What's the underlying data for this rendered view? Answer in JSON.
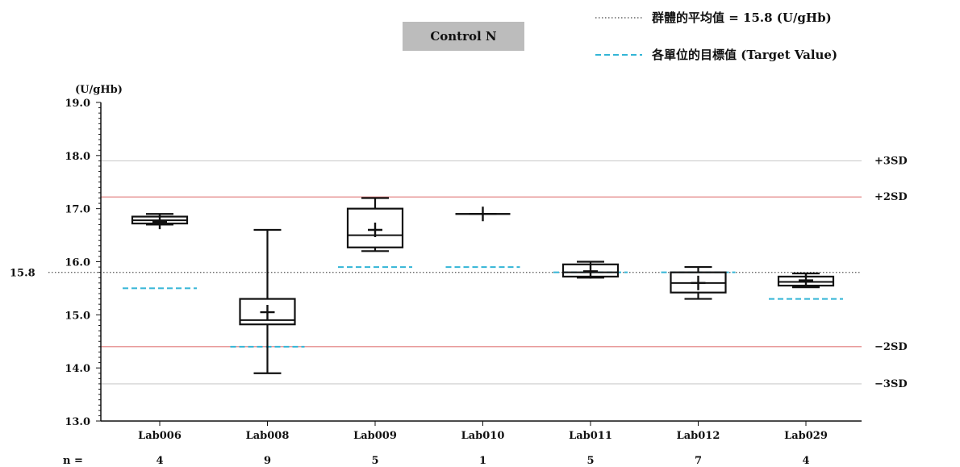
{
  "chart_data": {
    "type": "box",
    "title": "Control N",
    "y_unit": "(U/gHb)",
    "ylim": [
      13.0,
      19.0
    ],
    "yticks": [
      "13.0",
      "14.0",
      "15.0",
      "16.0",
      "17.0",
      "18.0",
      "19.0"
    ],
    "grid": false,
    "legend_position": "top-right",
    "legend": [
      {
        "label": "群體的平均值 = 15.8 (U/gHb)",
        "style": "dotted",
        "color": "#666666"
      },
      {
        "label": "各單位的目標值  (Target Value)",
        "style": "dashed",
        "color": "#33b5d6"
      }
    ],
    "group_mean": {
      "value": 15.8,
      "label": "15.8"
    },
    "sd_lines": [
      {
        "label": "+3SD",
        "value": 17.9,
        "color": "#cccccc"
      },
      {
        "label": "+2SD",
        "value": 17.22,
        "color": "#e07a7a"
      },
      {
        "label": "−2SD",
        "value": 14.4,
        "color": "#e07a7a"
      },
      {
        "label": "−3SD",
        "value": 13.7,
        "color": "#cccccc"
      }
    ],
    "n_label": "n =",
    "categories": [
      "Lab006",
      "Lab008",
      "Lab009",
      "Lab010",
      "Lab011",
      "Lab012",
      "Lab029"
    ],
    "n": [
      "4",
      "9",
      "5",
      "1",
      "5",
      "7",
      "4"
    ],
    "boxes": [
      {
        "min": 16.7,
        "q1": 16.72,
        "median": 16.78,
        "q3": 16.85,
        "max": 16.9,
        "mean": 16.75,
        "target": 15.5
      },
      {
        "min": 13.9,
        "q1": 14.82,
        "median": 14.9,
        "q3": 15.3,
        "max": 16.6,
        "mean": 15.05,
        "target": 14.4
      },
      {
        "min": 16.2,
        "q1": 16.27,
        "median": 16.5,
        "q3": 17.0,
        "max": 17.2,
        "mean": 16.6,
        "target": 15.9
      },
      {
        "min": 16.9,
        "q1": 16.9,
        "median": 16.9,
        "q3": 16.9,
        "max": 16.9,
        "mean": 16.9,
        "target": 15.9
      },
      {
        "min": 15.7,
        "q1": 15.72,
        "median": 15.8,
        "q3": 15.95,
        "max": 16.0,
        "mean": 15.82,
        "target": 15.8
      },
      {
        "min": 15.3,
        "q1": 15.42,
        "median": 15.6,
        "q3": 15.8,
        "max": 15.9,
        "mean": 15.6,
        "target": 15.8
      },
      {
        "min": 15.52,
        "q1": 15.55,
        "median": 15.62,
        "q3": 15.72,
        "max": 15.78,
        "mean": 15.65,
        "target": 15.3
      }
    ]
  }
}
